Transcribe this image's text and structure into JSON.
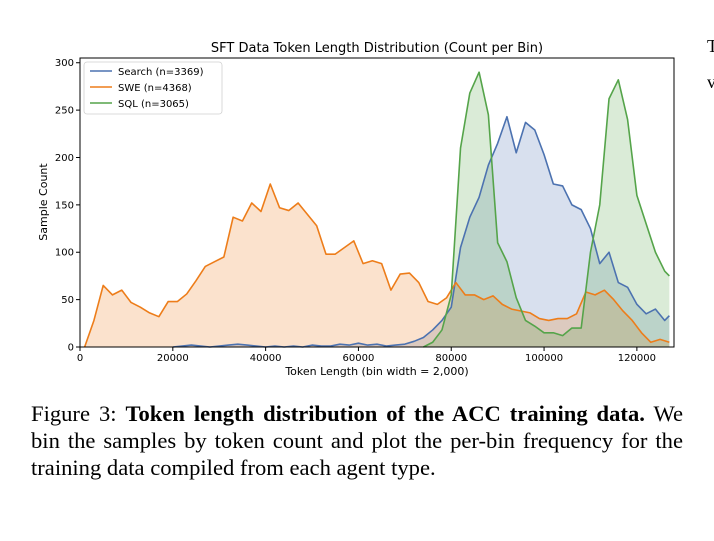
{
  "chart_data": {
    "type": "area",
    "title": "SFT Data Token Length Distribution (Count per Bin)",
    "xlabel": "Token Length (bin width = 2,000)",
    "ylabel": "Sample Count",
    "xlim": [
      0,
      128000
    ],
    "ylim": [
      0,
      305
    ],
    "grid": false,
    "legend_position": "top-left",
    "x_ticks": [
      0,
      20000,
      40000,
      60000,
      80000,
      100000,
      120000
    ],
    "x_tick_labels": [
      "0",
      "20000",
      "40000",
      "60000",
      "80000",
      "100000",
      "120000"
    ],
    "y_ticks": [
      0,
      50,
      100,
      150,
      200,
      250,
      300
    ],
    "y_tick_labels": [
      "0",
      "50",
      "100",
      "150",
      "200",
      "250",
      "300"
    ],
    "series": [
      {
        "name": "Search (n=3369)",
        "color": "#4c72b0",
        "x": [
          20000,
          22000,
          24000,
          26000,
          28000,
          30000,
          32000,
          34000,
          36000,
          38000,
          40000,
          42000,
          44000,
          46000,
          48000,
          50000,
          52000,
          54000,
          56000,
          58000,
          60000,
          62000,
          64000,
          66000,
          68000,
          70000,
          72000,
          74000,
          76000,
          78000,
          80000,
          82000,
          84000,
          86000,
          88000,
          90000,
          92000,
          94000,
          96000,
          98000,
          100000,
          102000,
          104000,
          106000,
          108000,
          110000,
          112000,
          114000,
          116000,
          118000,
          120000,
          122000,
          124000,
          126000,
          127000
        ],
        "values": [
          0,
          1,
          2,
          1,
          0,
          1,
          2,
          3,
          2,
          1,
          0,
          1,
          0,
          1,
          0,
          2,
          1,
          1,
          3,
          2,
          4,
          2,
          3,
          1,
          2,
          3,
          6,
          10,
          18,
          28,
          42,
          105,
          137,
          158,
          192,
          215,
          243,
          205,
          237,
          229,
          203,
          172,
          170,
          150,
          145,
          125,
          88,
          100,
          68,
          63,
          45,
          35,
          40,
          28,
          33
        ]
      },
      {
        "name": "SWE (n=4368)",
        "color": "#ed7d1a",
        "x": [
          1000,
          3000,
          5000,
          7000,
          9000,
          11000,
          13000,
          15000,
          17000,
          19000,
          21000,
          23000,
          25000,
          27000,
          29000,
          31000,
          33000,
          35000,
          37000,
          39000,
          41000,
          43000,
          45000,
          47000,
          49000,
          51000,
          53000,
          55000,
          57000,
          59000,
          61000,
          63000,
          65000,
          67000,
          69000,
          71000,
          73000,
          75000,
          77000,
          79000,
          81000,
          83000,
          85000,
          87000,
          89000,
          91000,
          93000,
          95000,
          97000,
          99000,
          101000,
          103000,
          105000,
          107000,
          109000,
          111000,
          113000,
          115000,
          117000,
          119000,
          121000,
          123000,
          125000,
          127000
        ],
        "values": [
          0,
          28,
          65,
          55,
          60,
          47,
          42,
          36,
          32,
          48,
          48,
          56,
          70,
          85,
          90,
          95,
          137,
          133,
          152,
          143,
          172,
          147,
          144,
          152,
          140,
          128,
          98,
          98,
          105,
          112,
          88,
          91,
          88,
          60,
          77,
          78,
          68,
          48,
          45,
          52,
          68,
          55,
          55,
          50,
          54,
          45,
          40,
          38,
          36,
          30,
          28,
          30,
          30,
          35,
          58,
          55,
          60,
          50,
          38,
          28,
          15,
          5,
          8,
          5
        ]
      },
      {
        "name": "SQL (n=3065)",
        "color": "#55a44a",
        "x": [
          74000,
          76000,
          78000,
          80000,
          82000,
          84000,
          86000,
          88000,
          90000,
          92000,
          94000,
          96000,
          98000,
          100000,
          102000,
          104000,
          106000,
          108000,
          110000,
          112000,
          114000,
          116000,
          118000,
          120000,
          122000,
          124000,
          126000,
          127000
        ],
        "values": [
          0,
          5,
          18,
          55,
          210,
          268,
          290,
          245,
          110,
          90,
          52,
          28,
          22,
          15,
          15,
          12,
          20,
          20,
          100,
          150,
          262,
          282,
          240,
          160,
          130,
          100,
          80,
          75
        ]
      }
    ]
  },
  "caption": {
    "label": "Figure 3:",
    "bold": "Token length distribution of the ACC training data.",
    "text": "We bin the samples by token count and plot the per-bin frequency for the training data compiled from each agent type."
  },
  "edge_fragment": {
    "line1": "T",
    "line2": "v"
  }
}
